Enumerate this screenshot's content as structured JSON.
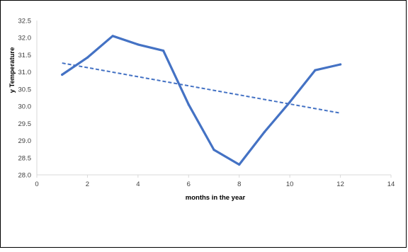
{
  "chart_data": {
    "type": "line",
    "title": "",
    "xlabel": "months in the year",
    "ylabel": "y Temperature",
    "xlim": [
      0,
      14
    ],
    "ylim": [
      28.0,
      32.5
    ],
    "x_ticks": [
      0,
      2,
      4,
      6,
      8,
      10,
      12,
      14
    ],
    "y_ticks": [
      28.0,
      28.5,
      29.0,
      29.5,
      30.0,
      30.5,
      31.0,
      31.5,
      32.0,
      32.5
    ],
    "x_tick_labels": [
      "0",
      "2",
      "4",
      "6",
      "8",
      "10",
      "12",
      "14"
    ],
    "y_tick_labels": [
      "28.0",
      "28.5",
      "29.0",
      "29.5",
      "30.0",
      "30.5",
      "31.0",
      "31.5",
      "32.0",
      "32.5"
    ],
    "grid": false,
    "legend": "none",
    "series": [
      {
        "style": "solid",
        "color": "#4472C4",
        "x": [
          1,
          2,
          3,
          4,
          5,
          6,
          7,
          8,
          9,
          10,
          11,
          12
        ],
        "y": [
          30.92,
          31.42,
          32.05,
          31.8,
          31.62,
          30.05,
          28.73,
          28.3,
          29.25,
          30.12,
          31.05,
          31.22
        ]
      }
    ],
    "trendline": {
      "style": "dashed",
      "color": "#4472C4",
      "x": [
        1,
        12
      ],
      "y": [
        31.26,
        29.8
      ]
    }
  }
}
